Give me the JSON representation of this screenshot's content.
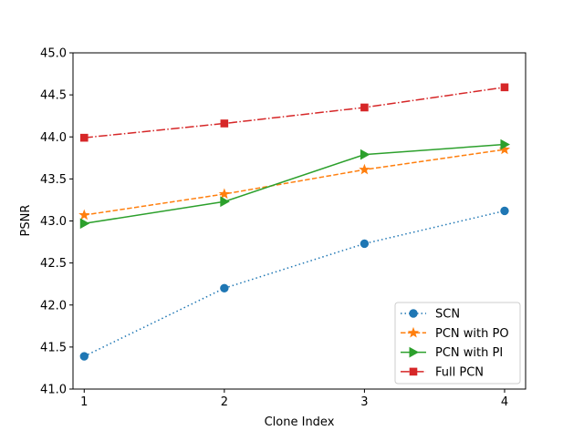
{
  "chart_data": {
    "type": "line",
    "title": "",
    "xlabel": "Clone Index",
    "ylabel": "PSNR",
    "x": [
      1,
      2,
      3,
      4
    ],
    "xticks": [
      "1",
      "2",
      "3",
      "4"
    ],
    "xlim": [
      0.92,
      4.15
    ],
    "ylim": [
      41.0,
      45.0
    ],
    "yticks": [
      "41.0",
      "41.5",
      "42.0",
      "42.5",
      "43.0",
      "43.5",
      "44.0",
      "44.5",
      "45.0"
    ],
    "grid": false,
    "legend_position": "lower-right",
    "series": [
      {
        "name": "SCN",
        "values": [
          41.39,
          42.2,
          42.73,
          43.12
        ],
        "color": "#1f77b4",
        "marker": "circle",
        "linestyle": "dotted"
      },
      {
        "name": "PCN with PO",
        "values": [
          43.07,
          43.32,
          43.61,
          43.85
        ],
        "color": "#ff7f0e",
        "marker": "star",
        "linestyle": "dashed"
      },
      {
        "name": "PCN with PI",
        "values": [
          42.97,
          43.23,
          43.79,
          43.91
        ],
        "color": "#2ca02c",
        "marker": "triangle-right",
        "linestyle": "solid"
      },
      {
        "name": "Full PCN",
        "values": [
          43.99,
          44.16,
          44.35,
          44.59
        ],
        "color": "#d62728",
        "marker": "square",
        "linestyle": "dashdot"
      }
    ]
  }
}
